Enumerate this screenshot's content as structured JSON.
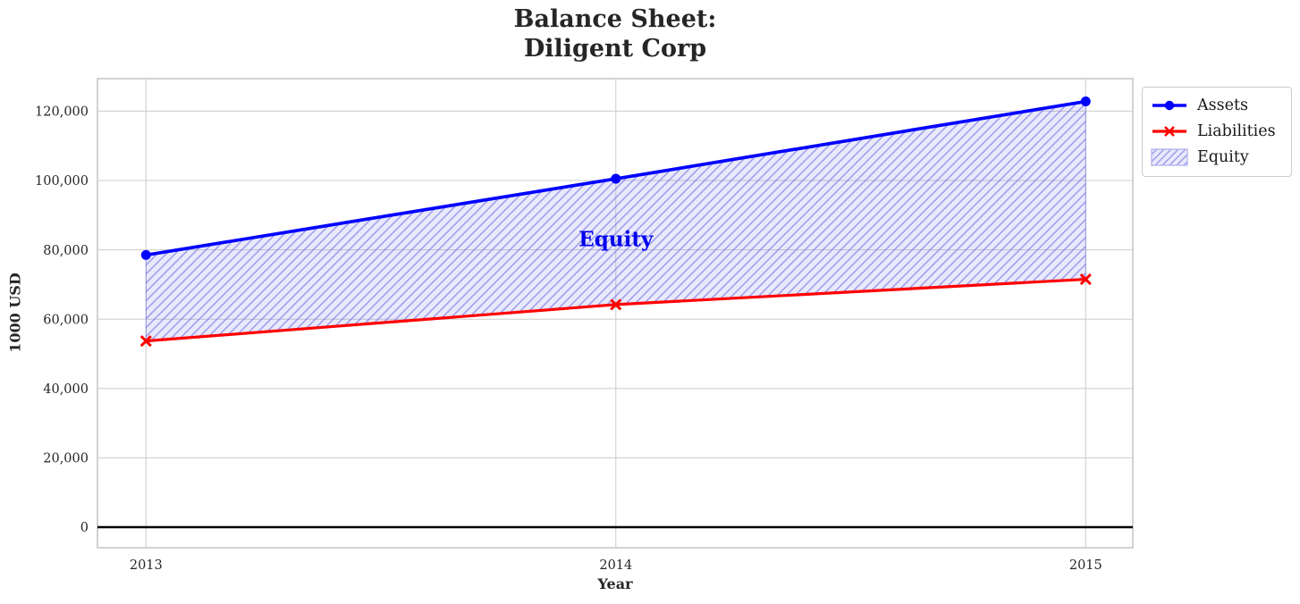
{
  "title": {
    "line1": "Balance Sheet:",
    "line2": "Diligent Corp"
  },
  "chart_data": {
    "type": "line",
    "title": "Balance Sheet:\nDiligent Corp",
    "xlabel": "Year",
    "ylabel": "1000 USD",
    "x": [
      2013,
      2014,
      2015
    ],
    "xtick_labels": [
      "2013",
      "2014",
      "2015"
    ],
    "ytick_values": [
      0,
      20000,
      40000,
      60000,
      80000,
      100000,
      120000
    ],
    "ytick_labels": [
      "0",
      "20,000",
      "40,000",
      "60,000",
      "80,000",
      "100,000",
      "120,000"
    ],
    "ylim": [
      -5900,
      129400
    ],
    "grid": true,
    "zero_line": true,
    "legend_position": "upper-right-outside",
    "series": [
      {
        "name": "Assets",
        "color": "#0000ff",
        "marker": "circle",
        "values": [
          78500,
          100500,
          122800
        ]
      },
      {
        "name": "Liabilities",
        "color": "#ff0000",
        "marker": "x",
        "values": [
          53700,
          64200,
          71500
        ]
      }
    ],
    "area": {
      "name": "Equity",
      "between": [
        "Assets",
        "Liabilities"
      ],
      "values": [
        24800,
        36300,
        51300
      ],
      "facecolor": "#e9e9fa",
      "hatchcolor": "#9d9de0",
      "hatch": "/",
      "annotation": {
        "text": "Equity",
        "x": 2014,
        "y": 83000,
        "color": "#0000ee"
      }
    },
    "style": {
      "grid_color": "#cccccc",
      "spine_color": "#c4c4c4",
      "zero_line_color": "#000000",
      "tick_color": "#262626"
    }
  }
}
